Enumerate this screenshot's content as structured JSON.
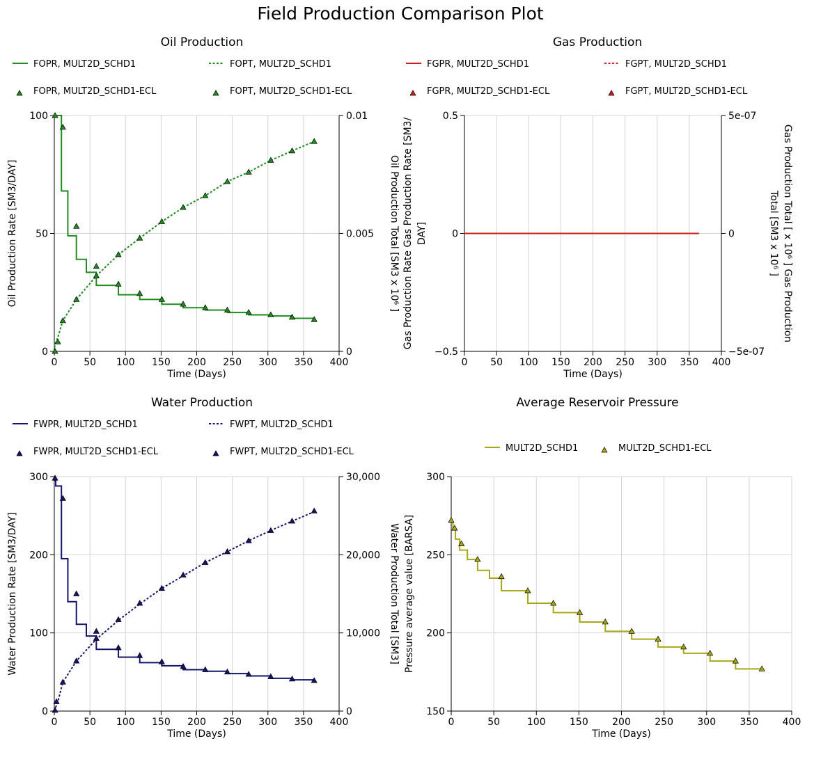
{
  "page_title": "Field Production Comparison Plot",
  "chart_data": [
    {
      "id": "oil",
      "type": "line",
      "title": "Oil Production",
      "xlabel": "Time (Days)",
      "ylabel": "Oil Production Rate [SM3/DAY]",
      "y2label": "Oil Production Total [SM3 x 10⁶ ]",
      "xlim": [
        0,
        400
      ],
      "ylim": [
        0,
        100
      ],
      "y2lim": [
        0,
        0.01
      ],
      "xticks": [
        0,
        50,
        100,
        150,
        200,
        250,
        300,
        350,
        400
      ],
      "yticks": [
        0,
        50,
        100
      ],
      "y2ticks": [
        0,
        0.005,
        0.01
      ],
      "xtick_labels": [
        "0",
        "50",
        "100",
        "150",
        "200",
        "250",
        "300",
        "350",
        "400"
      ],
      "ytick_labels": [
        "0",
        "50",
        "100"
      ],
      "y2tick_labels": [
        "0",
        "0.005",
        "0.01"
      ],
      "grid": true,
      "legend_placement": "top",
      "color": "#1e8c1e",
      "series": [
        {
          "name": "FOPR, MULT2D_SCHD1",
          "style": "step",
          "axis": "left",
          "x": [
            0,
            10,
            19,
            31,
            45,
            59,
            90,
            120,
            151,
            181,
            212,
            243,
            273,
            304,
            334,
            365
          ],
          "y": [
            100,
            68,
            49,
            39,
            33.5,
            28,
            24,
            22,
            20,
            18.5,
            17.5,
            16.5,
            15.5,
            15,
            14,
            13.5
          ]
        },
        {
          "name": "FOPT, MULT2D_SCHD1",
          "style": "dotted",
          "axis": "right",
          "x": [
            0,
            1,
            5,
            12,
            31,
            59,
            90,
            120,
            151,
            181,
            212,
            243,
            273,
            304,
            334,
            365
          ],
          "y": [
            0,
            0.0003,
            0.0006,
            0.0013,
            0.0022,
            0.0032,
            0.0041,
            0.0048,
            0.0055,
            0.0061,
            0.0066,
            0.0072,
            0.0076,
            0.0081,
            0.0085,
            0.0089
          ]
        },
        {
          "name": "FOPR, MULT2D_SCHD1-ECL",
          "style": "markers",
          "axis": "left",
          "x": [
            1,
            12,
            31,
            59,
            90,
            120,
            151,
            181,
            212,
            243,
            273,
            304,
            334,
            365
          ],
          "y": [
            100,
            95,
            53,
            36,
            28.5,
            24.5,
            22,
            20,
            18.5,
            17.5,
            16.5,
            15.5,
            14.5,
            13.5
          ]
        },
        {
          "name": "FOPT, MULT2D_SCHD1-ECL",
          "style": "markers",
          "axis": "right",
          "x": [
            1,
            5,
            12,
            31,
            59,
            90,
            120,
            151,
            181,
            212,
            243,
            273,
            304,
            334,
            365
          ],
          "y": [
            0,
            0.0004,
            0.0013,
            0.0022,
            0.0032,
            0.0041,
            0.0048,
            0.0055,
            0.0061,
            0.0066,
            0.0072,
            0.0076,
            0.0081,
            0.0085,
            0.0089
          ]
        }
      ]
    },
    {
      "id": "gas",
      "type": "line",
      "title": "Gas Production",
      "xlabel": "Time (Days)",
      "ylabel": "Gas Production Rate Gas Production Rate [SM3/ DAY]",
      "ylabel_lines": [
        "Gas Production Rate Gas Production Rate [SM3/",
        "DAY]"
      ],
      "y2label": "Gas Production Total [ x 10⁶ ] Gas Production Total [SM3 x 10⁶ ]",
      "y2label_lines": [
        "Gas Production Total [ x 10⁶ ] Gas Production",
        "Total [SM3 x 10⁶ ]"
      ],
      "xlim": [
        0,
        400
      ],
      "ylim": [
        -0.5,
        0.5
      ],
      "y2lim": [
        -5e-07,
        5e-07
      ],
      "xticks": [
        0,
        50,
        100,
        150,
        200,
        250,
        300,
        350,
        400
      ],
      "yticks": [
        -0.5,
        0,
        0.5
      ],
      "y2ticks": [
        -5e-07,
        0,
        5e-07
      ],
      "xtick_labels": [
        "0",
        "50",
        "100",
        "150",
        "200",
        "250",
        "300",
        "350",
        "400"
      ],
      "ytick_labels": [
        "−0.5",
        "0",
        "0.5"
      ],
      "y2tick_labels": [
        "−5e-07",
        "0",
        "5e-07"
      ],
      "grid": true,
      "legend_placement": "top",
      "color": "#c81e1e",
      "series": [
        {
          "name": "FGPR, MULT2D_SCHD1",
          "style": "step",
          "axis": "left",
          "x": [
            0,
            365
          ],
          "y": [
            0,
            0
          ]
        },
        {
          "name": "FGPT, MULT2D_SCHD1",
          "style": "dotted",
          "axis": "right",
          "x": [
            0,
            365
          ],
          "y": [
            0,
            0
          ]
        },
        {
          "name": "FGPR, MULT2D_SCHD1-ECL",
          "style": "markers",
          "axis": "left",
          "x": [],
          "y": []
        },
        {
          "name": "FGPT, MULT2D_SCHD1-ECL",
          "style": "markers",
          "axis": "right",
          "x": [],
          "y": []
        }
      ]
    },
    {
      "id": "water",
      "type": "line",
      "title": "Water Production",
      "xlabel": "Time (Days)",
      "ylabel": "Water Production Rate [SM3/DAY]",
      "y2label": "Water Production Total [SM3]",
      "xlim": [
        0,
        400
      ],
      "ylim": [
        0,
        300
      ],
      "y2lim": [
        0,
        30000
      ],
      "xticks": [
        0,
        50,
        100,
        150,
        200,
        250,
        300,
        350,
        400
      ],
      "yticks": [
        0,
        100,
        200,
        300
      ],
      "y2ticks": [
        0,
        10000,
        20000,
        30000
      ],
      "xtick_labels": [
        "0",
        "50",
        "100",
        "150",
        "200",
        "250",
        "300",
        "350",
        "400"
      ],
      "ytick_labels": [
        "0",
        "100",
        "200",
        "300"
      ],
      "y2tick_labels": [
        "0",
        "10,000",
        "20,000",
        "30,000"
      ],
      "grid": true,
      "legend_placement": "top",
      "color": "#14146e",
      "series": [
        {
          "name": "FWPR, MULT2D_SCHD1",
          "style": "step",
          "axis": "left",
          "x": [
            0,
            2,
            10,
            19,
            31,
            45,
            59,
            90,
            120,
            151,
            181,
            212,
            243,
            273,
            304,
            334,
            365
          ],
          "y": [
            295,
            288,
            195,
            140,
            111,
            96,
            79,
            69,
            62,
            58,
            53,
            51,
            48,
            45,
            42,
            40,
            38
          ]
        },
        {
          "name": "FWPT, MULT2D_SCHD1",
          "style": "dotted",
          "axis": "right",
          "x": [
            0,
            2,
            5,
            12,
            31,
            59,
            90,
            120,
            151,
            181,
            212,
            243,
            273,
            304,
            334,
            365
          ],
          "y": [
            0,
            500,
            1200,
            3700,
            6400,
            9200,
            11600,
            13700,
            15700,
            17300,
            19000,
            20400,
            21800,
            23100,
            24300,
            25500
          ]
        },
        {
          "name": "FWPR, MULT2D_SCHD1-ECL",
          "style": "markers",
          "axis": "left",
          "x": [
            1,
            12,
            31,
            59,
            90,
            120,
            151,
            181,
            212,
            243,
            273,
            304,
            334,
            365
          ],
          "y": [
            298,
            272,
            150,
            102,
            81,
            71,
            63,
            57,
            53,
            50,
            47,
            44,
            41,
            39
          ]
        },
        {
          "name": "FWPT, MULT2D_SCHD1-ECL",
          "style": "markers",
          "axis": "right",
          "x": [
            1,
            3,
            12,
            31,
            59,
            90,
            120,
            151,
            181,
            212,
            243,
            273,
            304,
            334,
            365
          ],
          "y": [
            100,
            1200,
            3700,
            6400,
            9300,
            11700,
            13800,
            15700,
            17400,
            19000,
            20400,
            21800,
            23100,
            24300,
            25600
          ]
        }
      ]
    },
    {
      "id": "pressure",
      "type": "line",
      "title": "Average Reservoir Pressure",
      "xlabel": "Time (Days)",
      "ylabel": "Pressure average value [BARSA]",
      "xlim": [
        0,
        400
      ],
      "ylim": [
        150,
        300
      ],
      "xticks": [
        0,
        50,
        100,
        150,
        200,
        250,
        300,
        350,
        400
      ],
      "yticks": [
        150,
        200,
        250,
        300
      ],
      "xtick_labels": [
        "0",
        "50",
        "100",
        "150",
        "200",
        "250",
        "300",
        "350",
        "400"
      ],
      "ytick_labels": [
        "150",
        "200",
        "250",
        "300"
      ],
      "grid": true,
      "legend_placement": "top",
      "color": "#a8a814",
      "series": [
        {
          "name": "MULT2D_SCHD1",
          "style": "step",
          "axis": "left",
          "x": [
            0,
            2,
            5,
            10,
            19,
            31,
            45,
            59,
            90,
            120,
            151,
            181,
            212,
            243,
            273,
            304,
            334,
            365
          ],
          "y": [
            271,
            266,
            260,
            253,
            247,
            240,
            235,
            227,
            219,
            213,
            207,
            201,
            196,
            191,
            187,
            182,
            177,
            177
          ]
        },
        {
          "name": "MULT2D_SCHD1-ECL",
          "style": "markers",
          "axis": "left",
          "x": [
            0,
            4,
            12,
            31,
            59,
            90,
            120,
            151,
            181,
            212,
            243,
            273,
            304,
            334,
            365
          ],
          "y": [
            272,
            267,
            257,
            247,
            236,
            227,
            219,
            213,
            207,
            201,
            196,
            191,
            187,
            182,
            177
          ]
        }
      ]
    }
  ]
}
